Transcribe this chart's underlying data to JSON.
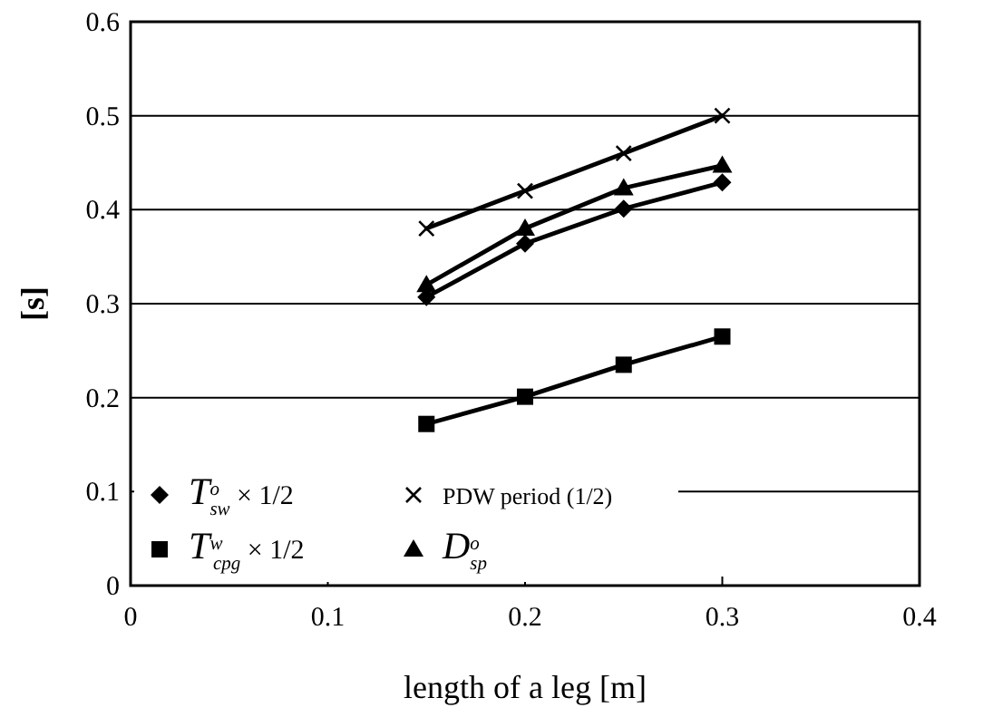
{
  "chart_data": {
    "type": "line",
    "xlabel": "length of a leg  [m]",
    "ylabel": "[s]",
    "x": [
      0.15,
      0.2,
      0.25,
      0.3
    ],
    "series": [
      {
        "name": "T$^{o}$$_{sw}$ × 1/2",
        "color": "#000000",
        "marker": "diamond",
        "values": [
          0.307,
          0.364,
          0.401,
          0.429
        ]
      },
      {
        "name": "PDW period (1/2)",
        "color": "#000000",
        "marker": "cross",
        "values": [
          0.38,
          0.42,
          0.46,
          0.5
        ]
      },
      {
        "name": "T$^{w}$$_{cpg}$ × 1/2",
        "color": "#000000",
        "marker": "square",
        "values": [
          0.172,
          0.201,
          0.235,
          0.265
        ]
      },
      {
        "name": "D$^{o}$$_{sp}$",
        "color": "#000000",
        "marker": "triangle",
        "values": [
          0.32,
          0.38,
          0.423,
          0.447
        ]
      }
    ],
    "xlim": [
      0,
      0.4
    ],
    "xticks": [
      0,
      0.1,
      0.2,
      0.3,
      0.4
    ],
    "ylim": [
      0,
      0.6
    ],
    "yticks": [
      0,
      0.1,
      0.2,
      0.3,
      0.4,
      0.5,
      0.6
    ],
    "grid": "y",
    "legend": "bottom left",
    "line_style": "solid"
  }
}
